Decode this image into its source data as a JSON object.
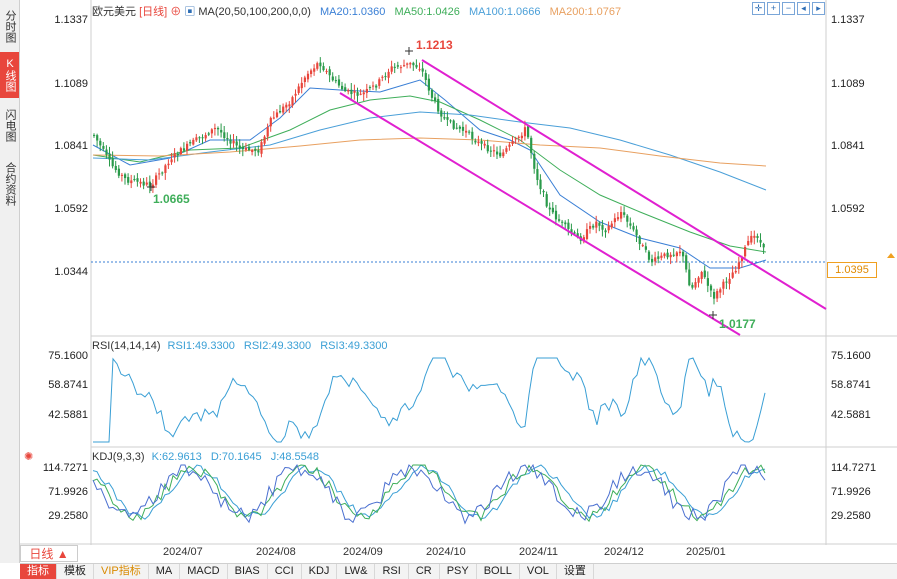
{
  "side_tabs": [
    "分时图",
    "K线图",
    "闪电图",
    "合约资料"
  ],
  "header": {
    "symbol": "欧元美元",
    "period": "[日线]",
    "ma_label": "MA(20,50,100,200,0,0)",
    "ma20": "MA20:1.0360",
    "ma50": "MA50:1.0426",
    "ma100": "MA100:1.0666",
    "ma200": "MA200:1.0767",
    "rsi_label": "RSI(14,14,14)",
    "rsi1": "RSI1:49.3300",
    "rsi2": "RSI2:49.3300",
    "rsi3": "RSI3:49.3300",
    "kdj_label": "KDJ(9,3,3)",
    "k": "K:62.9613",
    "d": "D:70.1645",
    "j": "J:48.5548"
  },
  "price_axis": [
    "1.1337",
    "1.1089",
    "1.0841",
    "1.0592",
    "1.0344"
  ],
  "rsi_axis": [
    "75.1600",
    "58.8741",
    "42.5881"
  ],
  "kdj_axis": [
    "114.7271",
    "71.9926",
    "29.2580"
  ],
  "annotations": {
    "high": "1.1213",
    "low1": "1.0665",
    "low2": "1.0177",
    "current": "1.0395"
  },
  "x_labels": [
    "2024/07",
    "2024/08",
    "2024/09",
    "2024/10",
    "2024/11",
    "2024/12",
    "2025/01"
  ],
  "period_button": "日线",
  "toolbar": [
    "指标",
    "模板",
    "VIP指标",
    "MA",
    "MACD",
    "BIAS",
    "CCI",
    "KDJ",
    "LW&",
    "RSI",
    "CR",
    "PSY",
    "BOLL",
    "VOL",
    "设置"
  ],
  "colors": {
    "up": "#e8463c",
    "down": "#2a9a4a",
    "ma20": "#3a7fd5",
    "ma50": "#3fae5a",
    "ma100": "#4a9fd8",
    "ma200": "#e8a060",
    "channel": "#e020d0"
  }
}
